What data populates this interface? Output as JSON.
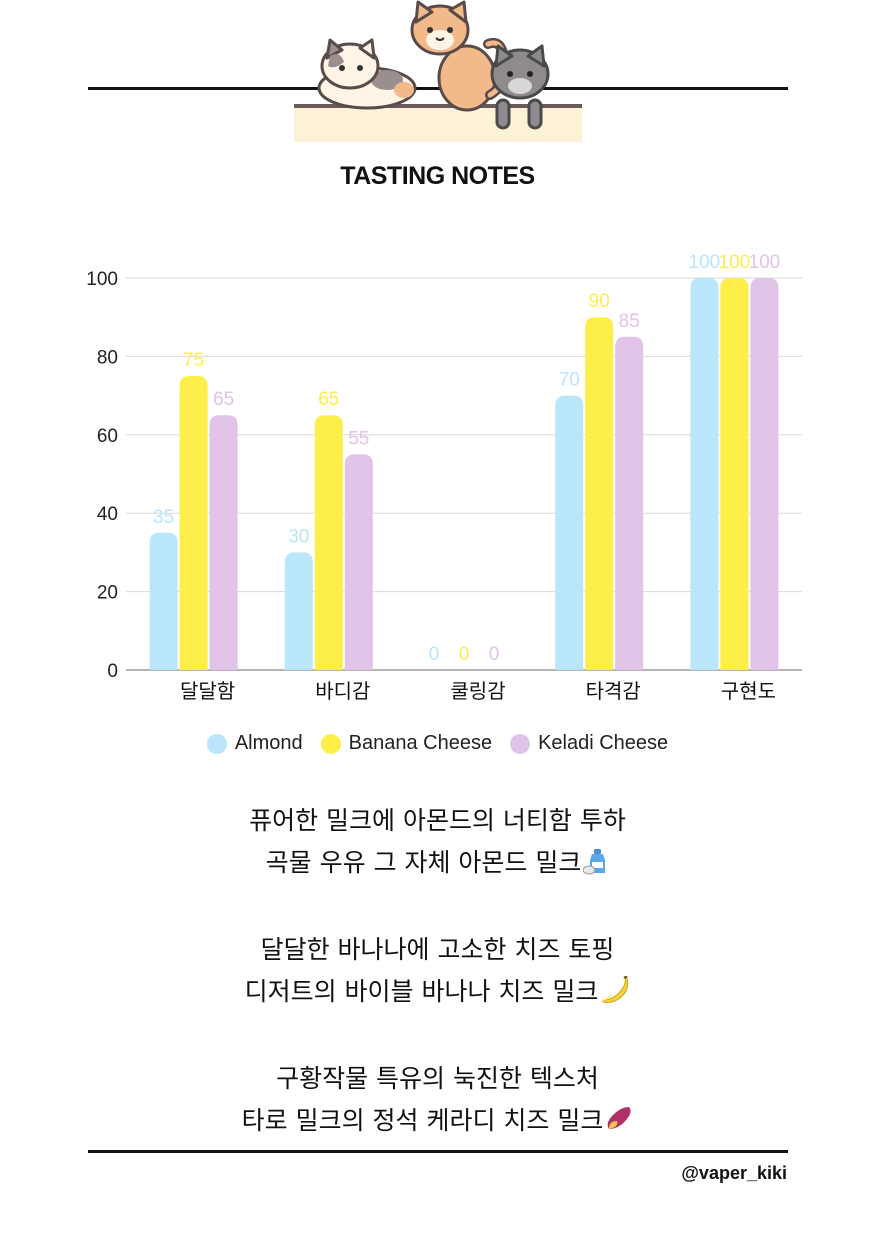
{
  "page": {
    "title": "TASTING NOTES",
    "handle": "@vaper_kiki",
    "illustration": "three-cats-icon"
  },
  "chart_data": {
    "type": "bar",
    "title": "TASTING NOTES",
    "categories": [
      "달달함",
      "바디감",
      "쿨링감",
      "타격감",
      "구현도"
    ],
    "series": [
      {
        "name": "Almond",
        "color": "#b9e6fb",
        "values": [
          35,
          30,
          0,
          70,
          100
        ]
      },
      {
        "name": "Banana Cheese",
        "color": "#fdee4a",
        "values": [
          75,
          65,
          0,
          90,
          100
        ]
      },
      {
        "name": "Keladi Cheese",
        "color": "#e1c3e8",
        "values": [
          65,
          55,
          0,
          85,
          100
        ]
      }
    ],
    "data_labels": [
      [
        "35",
        "30",
        "0",
        "70",
        "100"
      ],
      [
        "75",
        "65",
        "0",
        "90",
        "100"
      ],
      [
        "65",
        "55",
        "0",
        "85",
        "100"
      ]
    ],
    "ylim": [
      0,
      100
    ],
    "yticks": [
      "0",
      "20",
      "40",
      "60",
      "80",
      "100"
    ],
    "ytick_values": [
      0,
      20,
      40,
      60,
      80,
      100
    ],
    "xlabel": "",
    "ylabel": "",
    "grid": true,
    "legend": "bottom"
  },
  "notes": [
    {
      "lines": [
        "퓨어한 밀크에 아몬드의 너티함 투하",
        "곡물 우유 그 자체 아몬드 밀크"
      ],
      "emoji": "sake-bottle-icon"
    },
    {
      "lines": [
        "달달한 바나나에 고소한 치즈 토핑",
        "디저트의 바이블 바나나 치즈 밀크"
      ],
      "emoji": "banana-icon"
    },
    {
      "lines": [
        "구황작물 특유의 눅진한 텍스처",
        "타로 밀크의 정석 케라디 치즈 밀크"
      ],
      "emoji": "sweet-potato-icon"
    }
  ]
}
